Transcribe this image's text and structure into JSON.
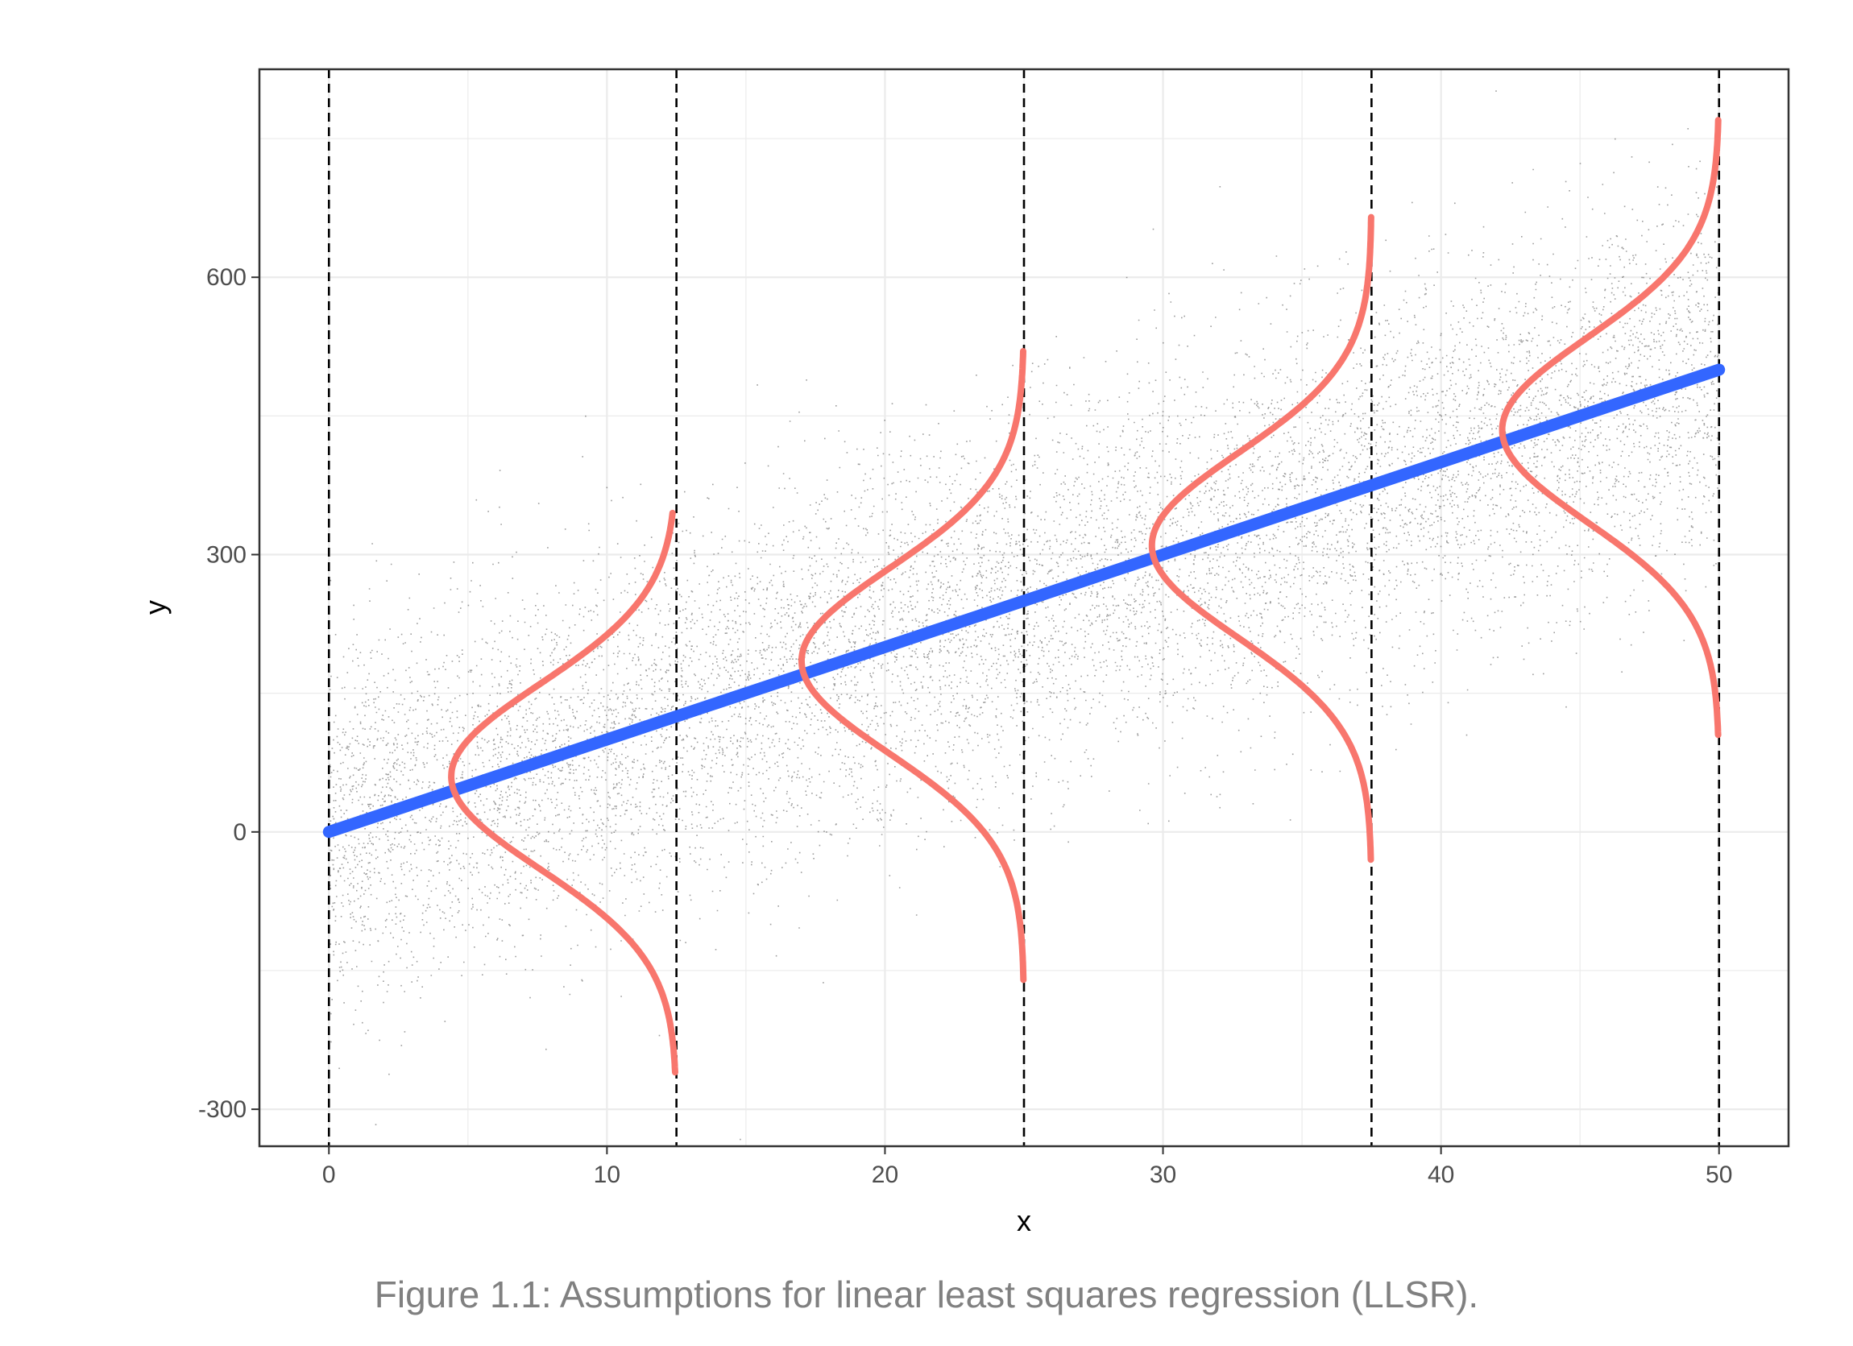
{
  "caption": "Figure 1.1: Assumptions for linear least squares regression (LLSR).",
  "colors": {
    "points": "#4d4d4d",
    "regression_line": "#3366FF",
    "density_curves": "#F8766D",
    "vlines": "#000000",
    "grid": "#ebebeb",
    "panel_border": "#333333"
  },
  "chart_data": {
    "type": "scatter",
    "title": "",
    "xlabel": "x",
    "ylabel": "y",
    "xlim": [
      -2.5,
      52.5
    ],
    "ylim": [
      -340,
      825
    ],
    "x_ticks": [
      0,
      10,
      20,
      30,
      40,
      50
    ],
    "x_tick_labels": [
      "0",
      "10",
      "20",
      "30",
      "40",
      "50"
    ],
    "y_ticks": [
      -300,
      0,
      300,
      600
    ],
    "y_tick_labels": [
      "-300",
      "0",
      "300",
      "600"
    ],
    "grid": true,
    "theme": "bw",
    "scatter": {
      "description_n_points": 10000,
      "x_range": [
        0,
        50
      ],
      "mean_intercept": 0,
      "mean_slope": 10,
      "residual_sd": 100
    },
    "regression_line": {
      "intercept": 0,
      "slope": 10,
      "x_range": [
        0,
        50
      ]
    },
    "vertical_lines": [
      0,
      12.5,
      25,
      37.5,
      50
    ],
    "density_curves": [
      {
        "x_base": 12.5,
        "mean": 60,
        "y_range": [
          -260,
          345
        ],
        "peak_x": 4.4
      },
      {
        "x_base": 25,
        "mean": 185,
        "y_range": [
          -160,
          520
        ],
        "peak_x": 17.0
      },
      {
        "x_base": 37.5,
        "mean": 310,
        "y_range": [
          -30,
          665
        ],
        "peak_x": 29.6
      },
      {
        "x_base": 50,
        "mean": 435,
        "y_range": [
          105,
          770
        ],
        "peak_x": 42.2
      }
    ]
  }
}
